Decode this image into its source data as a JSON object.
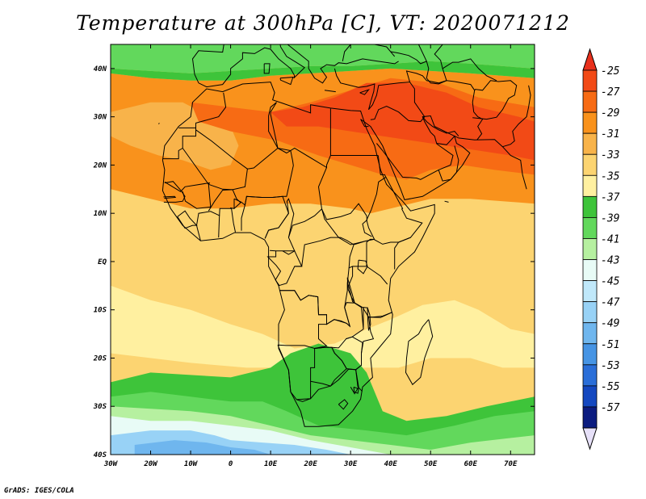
{
  "title": "Temperature at 300hPa [C], VT: 2020071212",
  "credit": "GrADS: IGES/COLA",
  "map": {
    "lon_range": [
      -30,
      76
    ],
    "lat_range": [
      -40,
      45
    ],
    "lon_ticks": [
      {
        "value": -30,
        "label": "30W"
      },
      {
        "value": -20,
        "label": "20W"
      },
      {
        "value": -10,
        "label": "10W"
      },
      {
        "value": 0,
        "label": "0"
      },
      {
        "value": 10,
        "label": "10E"
      },
      {
        "value": 20,
        "label": "20E"
      },
      {
        "value": 30,
        "label": "30E"
      },
      {
        "value": 40,
        "label": "40E"
      },
      {
        "value": 50,
        "label": "50E"
      },
      {
        "value": 60,
        "label": "60E"
      },
      {
        "value": 70,
        "label": "70E"
      }
    ],
    "lat_ticks": [
      {
        "value": 40,
        "label": "40N"
      },
      {
        "value": 30,
        "label": "30N"
      },
      {
        "value": 20,
        "label": "20N"
      },
      {
        "value": 10,
        "label": "10N"
      },
      {
        "value": 0,
        "label": "EQ"
      },
      {
        "value": -10,
        "label": "10S"
      },
      {
        "value": -20,
        "label": "20S"
      },
      {
        "value": -30,
        "label": "30S"
      },
      {
        "value": -40,
        "label": "40S"
      }
    ]
  },
  "colorbar": {
    "top_color": "#e8301c",
    "bottom_color": "#e6e0f8",
    "bins": [
      {
        "label": "-25",
        "color": "#f24a16"
      },
      {
        "label": "-27",
        "color": "#f76b14"
      },
      {
        "label": "-29",
        "color": "#f9921c"
      },
      {
        "label": "-31",
        "color": "#f8b34a"
      },
      {
        "label": "-33",
        "color": "#fcd471"
      },
      {
        "label": "-35",
        "color": "#fff0a0"
      },
      {
        "label": "-37",
        "color": "#3ec43a"
      },
      {
        "label": "-39",
        "color": "#62d85c"
      },
      {
        "label": "-41",
        "color": "#b6f0a0"
      },
      {
        "label": "-43",
        "color": "#e8fbf6"
      },
      {
        "label": "-45",
        "color": "#c0e8fa"
      },
      {
        "label": "-47",
        "color": "#98d2f6"
      },
      {
        "label": "-49",
        "color": "#6fb6ee"
      },
      {
        "label": "-51",
        "color": "#4694e4"
      },
      {
        "label": "-53",
        "color": "#2a6ed8"
      },
      {
        "label": "-55",
        "color": "#1448c0"
      },
      {
        "label": "-57",
        "color": "#0c1c80"
      }
    ]
  },
  "field": {
    "background": "#fcd471",
    "regions": [
      {
        "name": "ne-warm-band",
        "color": "#f9921c",
        "pts": [
          [
            -30,
            39
          ],
          [
            -20,
            38
          ],
          [
            -10,
            37.5
          ],
          [
            0,
            37.5
          ],
          [
            10,
            38.5
          ],
          [
            20,
            39
          ],
          [
            30,
            39.5
          ],
          [
            40,
            40
          ],
          [
            50,
            39.5
          ],
          [
            60,
            39
          ],
          [
            76,
            38
          ],
          [
            76,
            12
          ],
          [
            60,
            13
          ],
          [
            50,
            13
          ],
          [
            45,
            12
          ],
          [
            40,
            11
          ],
          [
            35,
            10
          ],
          [
            30,
            11
          ],
          [
            20,
            12
          ],
          [
            10,
            12
          ],
          [
            0,
            11
          ],
          [
            -10,
            11
          ],
          [
            -20,
            13
          ],
          [
            -30,
            15
          ]
        ]
      },
      {
        "name": "sahel-lighter",
        "color": "#f8b34a",
        "pts": [
          [
            -30,
            31
          ],
          [
            -20,
            33
          ],
          [
            -12,
            33
          ],
          [
            -5,
            30
          ],
          [
            0,
            28
          ],
          [
            2,
            24
          ],
          [
            0,
            20
          ],
          [
            -5,
            19
          ],
          [
            -12,
            21
          ],
          [
            -18,
            22
          ],
          [
            -25,
            24
          ],
          [
            -30,
            26
          ]
        ]
      },
      {
        "name": "north-hot-core",
        "color": "#f76b14",
        "pts": [
          [
            -10,
            33
          ],
          [
            0,
            32
          ],
          [
            10,
            31
          ],
          [
            20,
            33
          ],
          [
            28,
            35
          ],
          [
            40,
            38
          ],
          [
            52,
            37
          ],
          [
            62,
            34
          ],
          [
            76,
            32
          ],
          [
            76,
            18
          ],
          [
            66,
            19
          ],
          [
            58,
            20
          ],
          [
            50,
            19
          ],
          [
            44,
            17
          ],
          [
            38,
            18
          ],
          [
            30,
            20
          ],
          [
            22,
            22
          ],
          [
            12,
            25
          ],
          [
            0,
            27
          ],
          [
            -8,
            29
          ]
        ]
      },
      {
        "name": "arabia-hottest",
        "color": "#f24a16",
        "pts": [
          [
            10,
            31
          ],
          [
            18,
            32
          ],
          [
            26,
            34
          ],
          [
            34,
            37
          ],
          [
            44,
            37
          ],
          [
            54,
            35
          ],
          [
            62,
            32
          ],
          [
            72,
            30
          ],
          [
            76,
            29
          ],
          [
            76,
            21
          ],
          [
            70,
            22
          ],
          [
            62,
            23
          ],
          [
            54,
            24
          ],
          [
            46,
            25
          ],
          [
            38,
            26
          ],
          [
            30,
            27
          ],
          [
            22,
            28
          ],
          [
            14,
            28
          ]
        ]
      },
      {
        "name": "cooler-south-west",
        "color": "#fff0a0",
        "pts": [
          [
            -30,
            -5
          ],
          [
            -20,
            -8
          ],
          [
            -10,
            -10
          ],
          [
            0,
            -13
          ],
          [
            8,
            -15
          ],
          [
            16,
            -18
          ],
          [
            26,
            -17
          ],
          [
            34,
            -14
          ],
          [
            40,
            -12
          ],
          [
            48,
            -9
          ],
          [
            56,
            -8
          ],
          [
            62,
            -10
          ],
          [
            70,
            -14
          ],
          [
            76,
            -15
          ],
          [
            76,
            -22
          ],
          [
            68,
            -22
          ],
          [
            60,
            -20
          ],
          [
            50,
            -20
          ],
          [
            42,
            -22
          ],
          [
            32,
            -22
          ],
          [
            24,
            -24
          ],
          [
            14,
            -22
          ],
          [
            4,
            -22
          ],
          [
            -10,
            -21
          ],
          [
            -30,
            -19
          ]
        ]
      },
      {
        "name": "south-green",
        "color": "#3ec43a",
        "pts": [
          [
            -30,
            -25
          ],
          [
            -20,
            -23
          ],
          [
            -10,
            -23.5
          ],
          [
            0,
            -24
          ],
          [
            10,
            -22
          ],
          [
            15,
            -19
          ],
          [
            22,
            -17
          ],
          [
            30,
            -19
          ],
          [
            34,
            -23
          ],
          [
            36,
            -27
          ],
          [
            38,
            -31
          ],
          [
            44,
            -33
          ],
          [
            54,
            -32
          ],
          [
            64,
            -30
          ],
          [
            76,
            -28
          ],
          [
            76,
            -40
          ],
          [
            -30,
            -40
          ]
        ]
      },
      {
        "name": "south-light-green",
        "color": "#62d85c",
        "pts": [
          [
            -30,
            -28
          ],
          [
            -20,
            -27
          ],
          [
            -10,
            -28
          ],
          [
            0,
            -29
          ],
          [
            8,
            -29
          ],
          [
            14,
            -31
          ],
          [
            22,
            -34
          ],
          [
            34,
            -35
          ],
          [
            44,
            -36
          ],
          [
            56,
            -34
          ],
          [
            66,
            -32
          ],
          [
            76,
            -31
          ],
          [
            76,
            -40
          ],
          [
            -30,
            -40
          ]
        ]
      },
      {
        "name": "south-pale-green",
        "color": "#b6f0a0",
        "pts": [
          [
            -30,
            -30
          ],
          [
            -20,
            -30.5
          ],
          [
            -10,
            -31
          ],
          [
            0,
            -32
          ],
          [
            10,
            -34
          ],
          [
            20,
            -36
          ],
          [
            30,
            -37
          ],
          [
            40,
            -38
          ],
          [
            50,
            -39
          ],
          [
            60,
            -37.5
          ],
          [
            76,
            -36
          ],
          [
            76,
            -40
          ],
          [
            -30,
            -40
          ]
        ]
      },
      {
        "name": "south-cyan",
        "color": "#e8fbf6",
        "pts": [
          [
            -30,
            -32
          ],
          [
            -20,
            -33
          ],
          [
            -10,
            -33
          ],
          [
            0,
            -34
          ],
          [
            10,
            -35
          ],
          [
            20,
            -37
          ],
          [
            30,
            -38.5
          ],
          [
            40,
            -40
          ],
          [
            -30,
            -40
          ]
        ]
      },
      {
        "name": "south-blue",
        "color": "#98d2f6",
        "pts": [
          [
            -30,
            -36
          ],
          [
            -20,
            -35
          ],
          [
            -10,
            -35
          ],
          [
            -4,
            -36
          ],
          [
            0,
            -37
          ],
          [
            8,
            -37.5
          ],
          [
            16,
            -38
          ],
          [
            24,
            -39
          ],
          [
            30,
            -40
          ],
          [
            -30,
            -40
          ]
        ]
      },
      {
        "name": "south-deep-blue",
        "color": "#6fb6ee",
        "pts": [
          [
            -24,
            -38
          ],
          [
            -14,
            -37
          ],
          [
            -6,
            -37.5
          ],
          [
            0,
            -38.5
          ],
          [
            6,
            -39
          ],
          [
            10,
            -40
          ],
          [
            -24,
            -40
          ]
        ]
      },
      {
        "name": "north-green-band",
        "color": "#62d85c",
        "pts": [
          [
            -30,
            45
          ],
          [
            76,
            45
          ],
          [
            76,
            40
          ],
          [
            60,
            41
          ],
          [
            50,
            41.5
          ],
          [
            40,
            41
          ],
          [
            30,
            40.5
          ],
          [
            20,
            40.5
          ],
          [
            10,
            40
          ],
          [
            0,
            39.5
          ],
          [
            -10,
            39
          ],
          [
            -20,
            39.5
          ],
          [
            -30,
            40
          ]
        ]
      },
      {
        "name": "north-dark-green",
        "color": "#3ec43a",
        "pts": [
          [
            -30,
            40
          ],
          [
            -20,
            39.5
          ],
          [
            -10,
            39
          ],
          [
            0,
            39.5
          ],
          [
            10,
            40
          ],
          [
            20,
            40.5
          ],
          [
            30,
            40.5
          ],
          [
            40,
            41
          ],
          [
            50,
            41.5
          ],
          [
            60,
            41
          ],
          [
            76,
            40
          ],
          [
            76,
            38
          ],
          [
            60,
            39
          ],
          [
            50,
            39.5
          ],
          [
            40,
            40
          ],
          [
            30,
            39.5
          ],
          [
            20,
            39
          ],
          [
            10,
            38.5
          ],
          [
            0,
            37.5
          ],
          [
            -10,
            37.5
          ],
          [
            -20,
            38
          ],
          [
            -30,
            39
          ]
        ]
      }
    ]
  }
}
